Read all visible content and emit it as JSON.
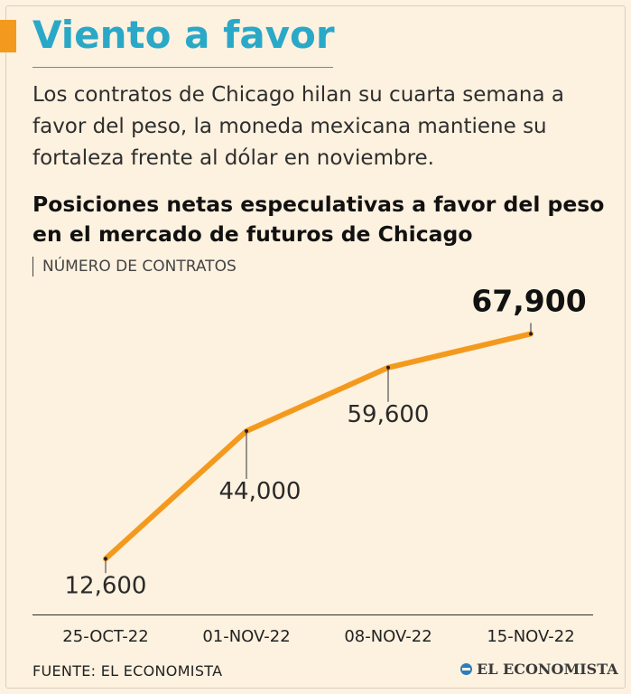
{
  "header": {
    "title": "Viento a favor",
    "intro": "Los contratos de Chicago hilan su cuarta semana a favor del peso, la moneda mexicana mantiene su fortaleza frente al dólar en noviembre."
  },
  "footer": {
    "source": "FUENTE: EL ECONOMISTA",
    "logo_text": "EL ECONOMISTA"
  },
  "colors": {
    "accent": "#f39a1e",
    "title": "#2aa8c8",
    "line": "#f39a1e",
    "background": "#fdf1df"
  },
  "chart_data": {
    "type": "line",
    "title": "Posiciones netas especulativas a favor del peso en el mercado de futuros de Chicago",
    "ylabel": "NÚMERO DE CONTRATOS",
    "xlabel": "",
    "categories": [
      "25-OCT-22",
      "01-NOV-22",
      "08-NOV-22",
      "15-NOV-22"
    ],
    "series": [
      {
        "name": "Posiciones netas",
        "values": [
          12600,
          44000,
          59600,
          67900
        ]
      }
    ],
    "data_labels": [
      "12,600",
      "44,000",
      "59,600",
      "67,900"
    ],
    "ylim": [
      0,
      80000
    ],
    "grid": false
  }
}
